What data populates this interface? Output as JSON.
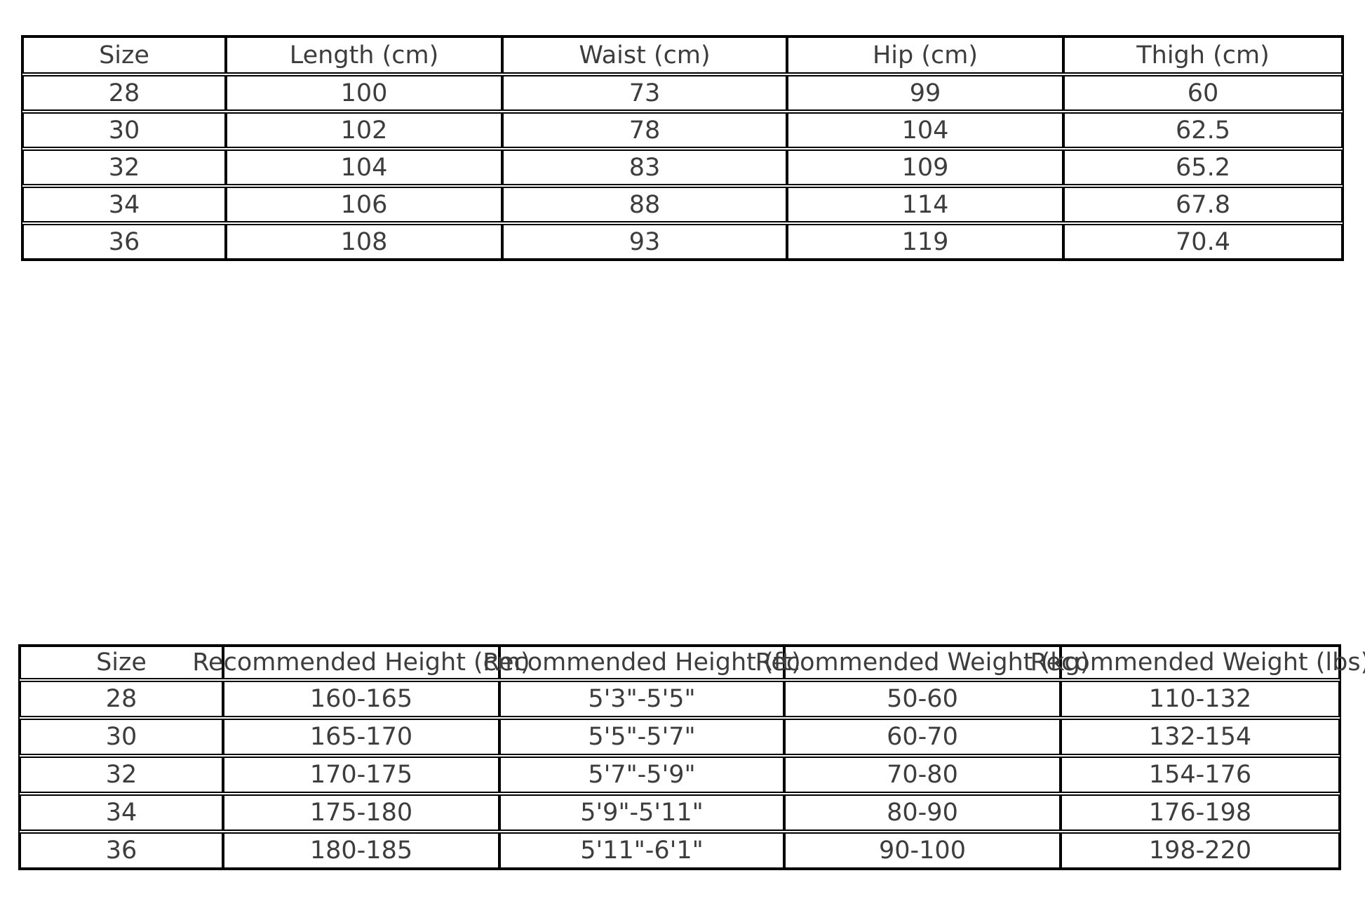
{
  "chart_data": [
    {
      "type": "table",
      "name": "size-measurements-table",
      "headers": [
        "Size",
        "Length (cm)",
        "Waist (cm)",
        "Hip (cm)",
        "Thigh (cm)"
      ],
      "rows": [
        [
          "28",
          "100",
          "73",
          "99",
          "60"
        ],
        [
          "30",
          "102",
          "78",
          "104",
          "62.5"
        ],
        [
          "32",
          "104",
          "83",
          "109",
          "65.2"
        ],
        [
          "34",
          "106",
          "88",
          "114",
          "67.8"
        ],
        [
          "36",
          "108",
          "93",
          "119",
          "70.4"
        ]
      ]
    },
    {
      "type": "table",
      "name": "size-recommendations-table",
      "headers": [
        "Size",
        "Recommended Height (cm)",
        "Recommended Height (ft)",
        "Recommended Weight (kg)",
        "Recommended Weight (lbs)"
      ],
      "rows": [
        [
          "28",
          "160-165",
          "5'3\"-5'5\"",
          "50-60",
          "110-132"
        ],
        [
          "30",
          "165-170",
          "5'5\"-5'7\"",
          "60-70",
          "132-154"
        ],
        [
          "32",
          "170-175",
          "5'7\"-5'9\"",
          "70-80",
          "154-176"
        ],
        [
          "34",
          "175-180",
          "5'9\"-5'11\"",
          "80-90",
          "176-198"
        ],
        [
          "36",
          "180-185",
          "5'11\"-6'1\"",
          "90-100",
          "198-220"
        ]
      ]
    }
  ],
  "colors": {
    "text": "#3d3d3d",
    "line": "#000000",
    "background": "#ffffff"
  }
}
